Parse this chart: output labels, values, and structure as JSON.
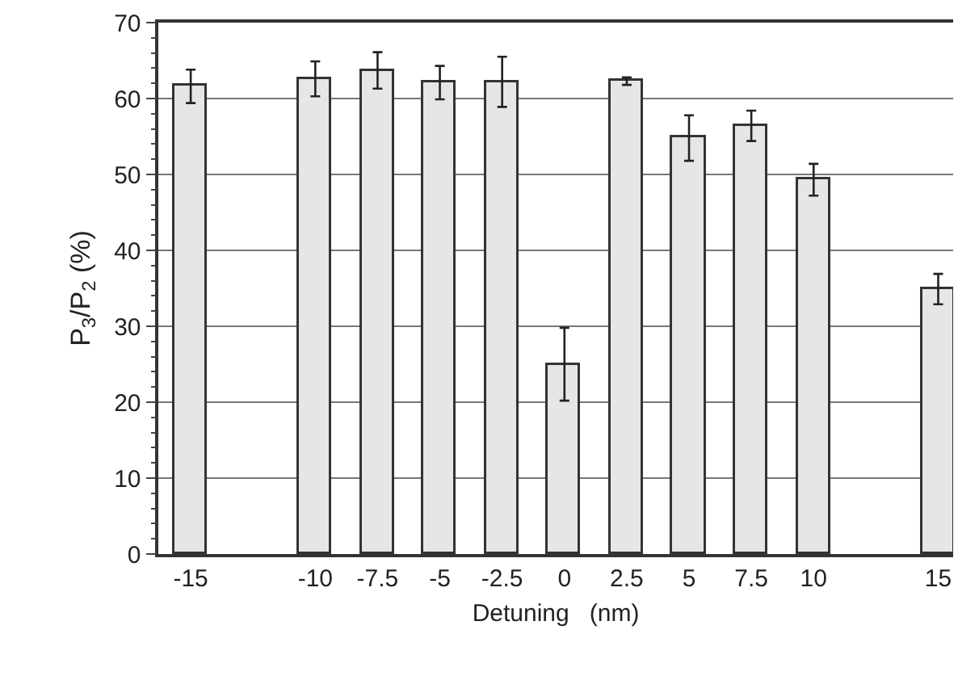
{
  "chart_data": {
    "type": "bar",
    "xlabel": "Detuning   (nm)",
    "ylabel": "P$_{3}$/P$_{2}$ (%)",
    "x": [
      -15,
      -10,
      -7.5,
      -5,
      -2.5,
      0,
      2.5,
      5,
      7.5,
      10,
      15
    ],
    "values": [
      61.6,
      62.6,
      63.7,
      62.1,
      62.2,
      25.0,
      62.3,
      54.8,
      56.4,
      49.3,
      34.9
    ],
    "errors": [
      2.2,
      2.3,
      2.4,
      2.2,
      3.3,
      4.8,
      0.5,
      3.0,
      2.0,
      2.1,
      2.0
    ],
    "color": "#e6e6e6",
    "xlim": [
      -16.3,
      15.6
    ],
    "xticks": [
      -15,
      -10,
      -7.5,
      -5,
      -2.5,
      0,
      2.5,
      5,
      7.5,
      10,
      15
    ],
    "ylim": [
      0,
      70
    ],
    "yticks": [
      0,
      10,
      20,
      30,
      40,
      50,
      60,
      70
    ],
    "grid": "y"
  }
}
